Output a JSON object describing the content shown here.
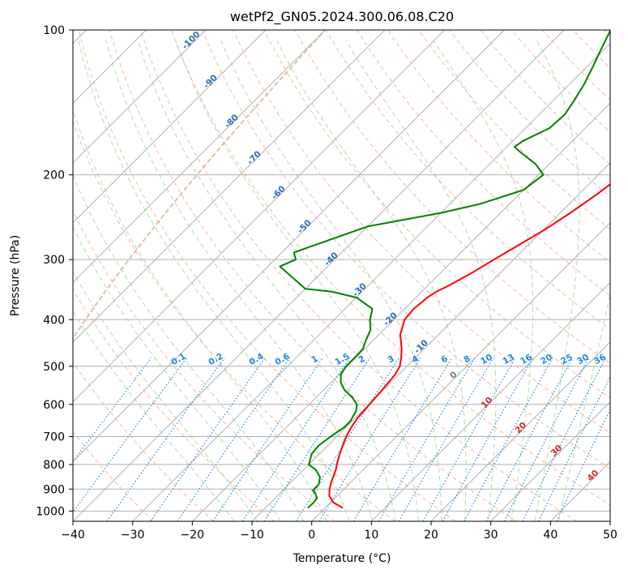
{
  "chart_data": {
    "type": "line",
    "title": "wetPf2_GN05.2024.300.06.08.C20",
    "xlabel": "Temperature (°C)",
    "ylabel": "Pressure (hPa)",
    "xlim": [
      -40,
      50
    ],
    "ylim": [
      1050,
      100
    ],
    "y_scale": "log",
    "x_ticks": [
      -40,
      -30,
      -20,
      -10,
      0,
      10,
      20,
      30,
      40,
      50
    ],
    "y_ticks": [
      100,
      200,
      300,
      400,
      500,
      600,
      700,
      800,
      900,
      1000
    ],
    "grid": true,
    "skew": 45,
    "colors": {
      "temperature": "#ff0000",
      "dewpoint": "#008000",
      "isotherm": "#b0b0b0",
      "dry_adiabat": "#f4a582",
      "moist_adiabat": "#8fc98f",
      "mixing_ratio": "#1e88e5",
      "saturation_curve": "#d2b48c"
    },
    "series": [
      {
        "key": "temperature",
        "pressure": [
          985,
          960,
          930,
          900,
          870,
          850,
          820,
          800,
          760,
          720,
          700,
          670,
          640,
          600,
          560,
          520,
          500,
          480,
          460,
          430,
          400,
          380,
          360,
          350,
          340,
          320,
          300,
          280,
          260,
          240,
          220,
          200,
          180,
          160,
          150,
          140,
          130,
          120,
          110,
          100
        ],
        "values": [
          3.0,
          0.5,
          -1.3,
          -2.4,
          -3.3,
          -3.8,
          -4.6,
          -5.3,
          -6.6,
          -7.8,
          -8.4,
          -9.1,
          -9.6,
          -9.9,
          -10.2,
          -10.6,
          -11.2,
          -12.4,
          -13.8,
          -16.4,
          -18.2,
          -18.5,
          -18.1,
          -17.6,
          -16.5,
          -14.8,
          -13.3,
          -11.6,
          -9.8,
          -8.3,
          -7.0,
          -5.9,
          -4.6,
          -3.2,
          -2.7,
          -2.6,
          -2.0,
          -1.6,
          -0.7,
          0.0
        ]
      },
      {
        "key": "dewpoint",
        "pressure": [
          985,
          960,
          940,
          920,
          905,
          880,
          850,
          820,
          800,
          760,
          730,
          700,
          670,
          650,
          620,
          600,
          580,
          560,
          540,
          520,
          500,
          480,
          460,
          440,
          420,
          400,
          380,
          360,
          350,
          345,
          310,
          300,
          290,
          256,
          240,
          230,
          215,
          200,
          190,
          180,
          175,
          170,
          160,
          150,
          140,
          130,
          120,
          110,
          100
        ],
        "values": [
          -2.9,
          -2.8,
          -3.0,
          -4.0,
          -5.0,
          -5.0,
          -6.0,
          -8.0,
          -10.0,
          -11.3,
          -11.5,
          -11.0,
          -10.3,
          -10.3,
          -11.0,
          -12.0,
          -14.0,
          -16.5,
          -18.4,
          -19.7,
          -20.2,
          -20.2,
          -20.3,
          -21.3,
          -22.2,
          -24.0,
          -25.4,
          -29.9,
          -35.0,
          -40.0,
          -48.0,
          -46.5,
          -48.0,
          -40.0,
          -30.0,
          -25.0,
          -20.0,
          -19.2,
          -22.3,
          -26.6,
          -28.7,
          -28.3,
          -26.0,
          -25.7,
          -26.5,
          -27.5,
          -28.9,
          -30.5,
          -32.2
        ]
      }
    ],
    "isotherm_labels": [
      "-100",
      "-90",
      "-80",
      "-70",
      "-60",
      "-50",
      "-40",
      "-30",
      "-20",
      "-10"
    ],
    "mixing_ratio_labels": [
      "0.1",
      "0.2",
      "0.4",
      "0.6",
      "1",
      "1.5",
      "2",
      "3",
      "4",
      "6",
      "8",
      "10",
      "13",
      "16",
      "20",
      "25",
      "30",
      "36"
    ],
    "isotherm_labels_right": [
      "0",
      "10",
      "20",
      "30",
      "40"
    ]
  }
}
